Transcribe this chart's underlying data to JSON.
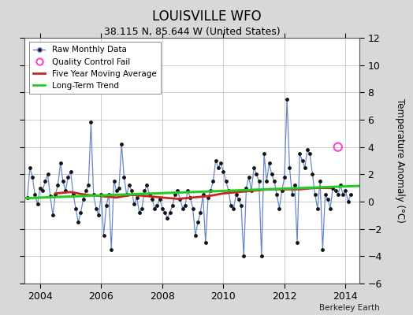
{
  "title": "LOUISVILLE WFO",
  "subtitle": "38.115 N, 85.644 W (United States)",
  "ylabel": "Temperature Anomaly (°C)",
  "credit": "Berkeley Earth",
  "xlim": [
    2003.5,
    2014.45
  ],
  "ylim": [
    -6,
    12
  ],
  "yticks": [
    -6,
    -4,
    -2,
    0,
    2,
    4,
    6,
    8,
    10,
    12
  ],
  "bg_color": "#d8d8d8",
  "plot_bg": "#ffffff",
  "grid_color": "#bbbbbb",
  "raw_color": "#6688cc",
  "raw_marker_color": "#111111",
  "moving_avg_color": "#cc2222",
  "trend_color": "#22cc22",
  "qc_fail_color": "#ff44cc",
  "raw_monthly": [
    0.3,
    2.5,
    1.8,
    0.5,
    -0.2,
    1.0,
    0.8,
    1.5,
    2.0,
    0.4,
    -1.0,
    0.5,
    1.2,
    2.8,
    1.5,
    0.8,
    1.8,
    2.2,
    0.6,
    -0.5,
    -1.5,
    -0.8,
    0.2,
    0.8,
    1.2,
    5.8,
    0.5,
    -0.5,
    -1.0,
    0.5,
    -2.5,
    -0.3,
    0.5,
    -3.5,
    1.5,
    0.8,
    1.0,
    4.2,
    1.8,
    0.5,
    1.2,
    0.8,
    -0.2,
    0.3,
    -0.8,
    -0.5,
    0.8,
    1.2,
    0.5,
    0.2,
    -0.5,
    -0.3,
    0.2,
    -0.5,
    -0.8,
    -1.2,
    -0.8,
    -0.3,
    0.5,
    0.8,
    0.2,
    -0.5,
    -0.3,
    0.8,
    0.3,
    -0.5,
    -2.5,
    -1.5,
    -0.8,
    0.5,
    -3.0,
    0.3,
    0.8,
    1.5,
    3.0,
    2.5,
    2.8,
    2.2,
    1.5,
    0.8,
    -0.3,
    -0.5,
    0.5,
    0.2,
    -0.3,
    -4.0,
    1.0,
    1.8,
    0.8,
    2.5,
    2.0,
    1.5,
    -4.0,
    3.5,
    1.5,
    2.8,
    2.0,
    1.5,
    0.5,
    -0.5,
    0.8,
    1.8,
    7.5,
    2.5,
    0.5,
    1.2,
    -3.0,
    3.5,
    3.0,
    2.5,
    3.8,
    3.5,
    2.0,
    0.5,
    -0.5,
    1.5,
    -3.5,
    0.5,
    0.2,
    -0.5,
    1.0,
    0.8,
    0.5,
    1.2,
    0.5,
    0.8,
    0.0,
    0.5
  ],
  "raw_times": [
    2003.583,
    2003.667,
    2003.75,
    2003.833,
    2003.917,
    2004.0,
    2004.083,
    2004.167,
    2004.25,
    2004.333,
    2004.417,
    2004.5,
    2004.583,
    2004.667,
    2004.75,
    2004.833,
    2004.917,
    2005.0,
    2005.083,
    2005.167,
    2005.25,
    2005.333,
    2005.417,
    2005.5,
    2005.583,
    2005.667,
    2005.75,
    2005.833,
    2005.917,
    2006.0,
    2006.083,
    2006.167,
    2006.25,
    2006.333,
    2006.417,
    2006.5,
    2006.583,
    2006.667,
    2006.75,
    2006.833,
    2006.917,
    2007.0,
    2007.083,
    2007.167,
    2007.25,
    2007.333,
    2007.417,
    2007.5,
    2007.583,
    2007.667,
    2007.75,
    2007.833,
    2007.917,
    2008.0,
    2008.083,
    2008.167,
    2008.25,
    2008.333,
    2008.417,
    2008.5,
    2008.583,
    2008.667,
    2008.75,
    2008.833,
    2008.917,
    2009.0,
    2009.083,
    2009.167,
    2009.25,
    2009.333,
    2009.417,
    2009.5,
    2009.583,
    2009.667,
    2009.75,
    2009.833,
    2009.917,
    2010.0,
    2010.083,
    2010.167,
    2010.25,
    2010.333,
    2010.417,
    2010.5,
    2010.583,
    2010.667,
    2010.75,
    2010.833,
    2010.917,
    2011.0,
    2011.083,
    2011.167,
    2011.25,
    2011.333,
    2011.417,
    2011.5,
    2011.583,
    2011.667,
    2011.75,
    2011.833,
    2011.917,
    2012.0,
    2012.083,
    2012.167,
    2012.25,
    2012.333,
    2012.417,
    2012.5,
    2012.583,
    2012.667,
    2012.75,
    2012.833,
    2012.917,
    2013.0,
    2013.083,
    2013.167,
    2013.25,
    2013.333,
    2013.417,
    2013.5,
    2013.583,
    2013.667,
    2013.75,
    2013.833,
    2013.917,
    2014.0,
    2014.083,
    2014.167
  ],
  "moving_avg_times": [
    2004.5,
    2005.0,
    2005.5,
    2006.0,
    2006.5,
    2007.0,
    2007.5,
    2008.0,
    2008.5,
    2009.0,
    2009.5,
    2010.0,
    2010.5,
    2011.0,
    2011.5,
    2012.0,
    2012.5,
    2013.0,
    2013.5
  ],
  "moving_avg_values": [
    0.6,
    0.7,
    0.5,
    0.4,
    0.3,
    0.5,
    0.4,
    0.3,
    0.2,
    0.3,
    0.4,
    0.6,
    0.7,
    0.8,
    0.9,
    0.9,
    0.9,
    1.0,
    1.0
  ],
  "trend_times": [
    2003.5,
    2014.45
  ],
  "trend_values": [
    0.25,
    1.15
  ],
  "qc_fail_times": [
    2013.75
  ],
  "qc_fail_values": [
    4.0
  ],
  "xticks": [
    2004,
    2006,
    2008,
    2010,
    2012,
    2014
  ]
}
